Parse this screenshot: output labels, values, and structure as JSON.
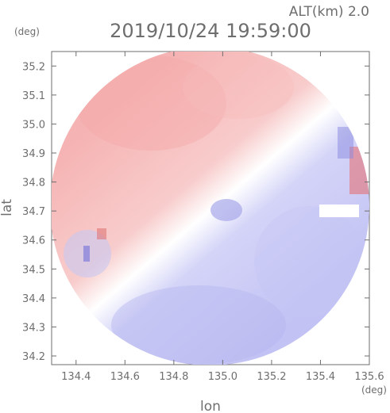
{
  "chart_data": {
    "type": "heatmap",
    "title": "2019/10/24 19:59:00",
    "altitude_label": "ALT(km) 2.0",
    "xlabel": "lon",
    "ylabel": "lat",
    "x_unit": "(deg)",
    "y_unit": "(deg)",
    "xlim": [
      134.3,
      135.6
    ],
    "ylim": [
      34.17,
      35.25
    ],
    "x_ticks": [
      "134.4",
      "134.6",
      "134.8",
      "135.0",
      "135.2",
      "135.4",
      "135.6"
    ],
    "y_ticks": [
      "35.2",
      "35.1",
      "35.0",
      "34.9",
      "34.8",
      "34.7",
      "34.6",
      "34.5",
      "34.4",
      "34.3",
      "34.2"
    ],
    "radar_center": {
      "lon": 134.95,
      "lat": 34.71
    },
    "colors": {
      "toward_positive": "#f4a8a8",
      "away_negative": "#b8b8f4",
      "neutral": "#ffffff"
    }
  }
}
